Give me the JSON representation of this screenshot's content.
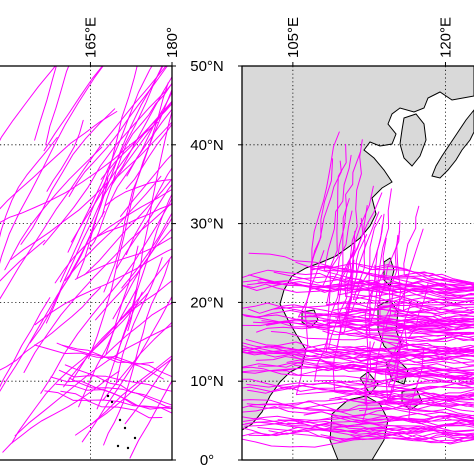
{
  "figure": {
    "left_panel": {
      "lon_ticks": [
        {
          "value": 165,
          "label": "165°E"
        },
        {
          "value": 180,
          "label": "180°"
        }
      ],
      "lat_ticks": [
        {
          "value": 50,
          "label": "50°N"
        },
        {
          "value": 40,
          "label": "40°N"
        },
        {
          "value": 30,
          "label": "30°N"
        },
        {
          "value": 20,
          "label": "20°N"
        },
        {
          "value": 10,
          "label": "10°N"
        },
        {
          "value": 0,
          "label": "0°"
        }
      ],
      "lon_range": [
        148,
        180
      ],
      "lat_range": [
        0,
        50
      ],
      "background": "#ffffff"
    },
    "right_panel": {
      "lon_ticks": [
        {
          "value": 105,
          "label": "105°E"
        },
        {
          "value": 120,
          "label": "120°E"
        }
      ],
      "lon_range": [
        100,
        123
      ],
      "lat_range": [
        0,
        50
      ],
      "land_color": "#d9d9d9",
      "ocean_color": "#ffffff"
    },
    "track_color": "#ff00ff",
    "grid": "dotted",
    "grid_color": "#000000"
  }
}
